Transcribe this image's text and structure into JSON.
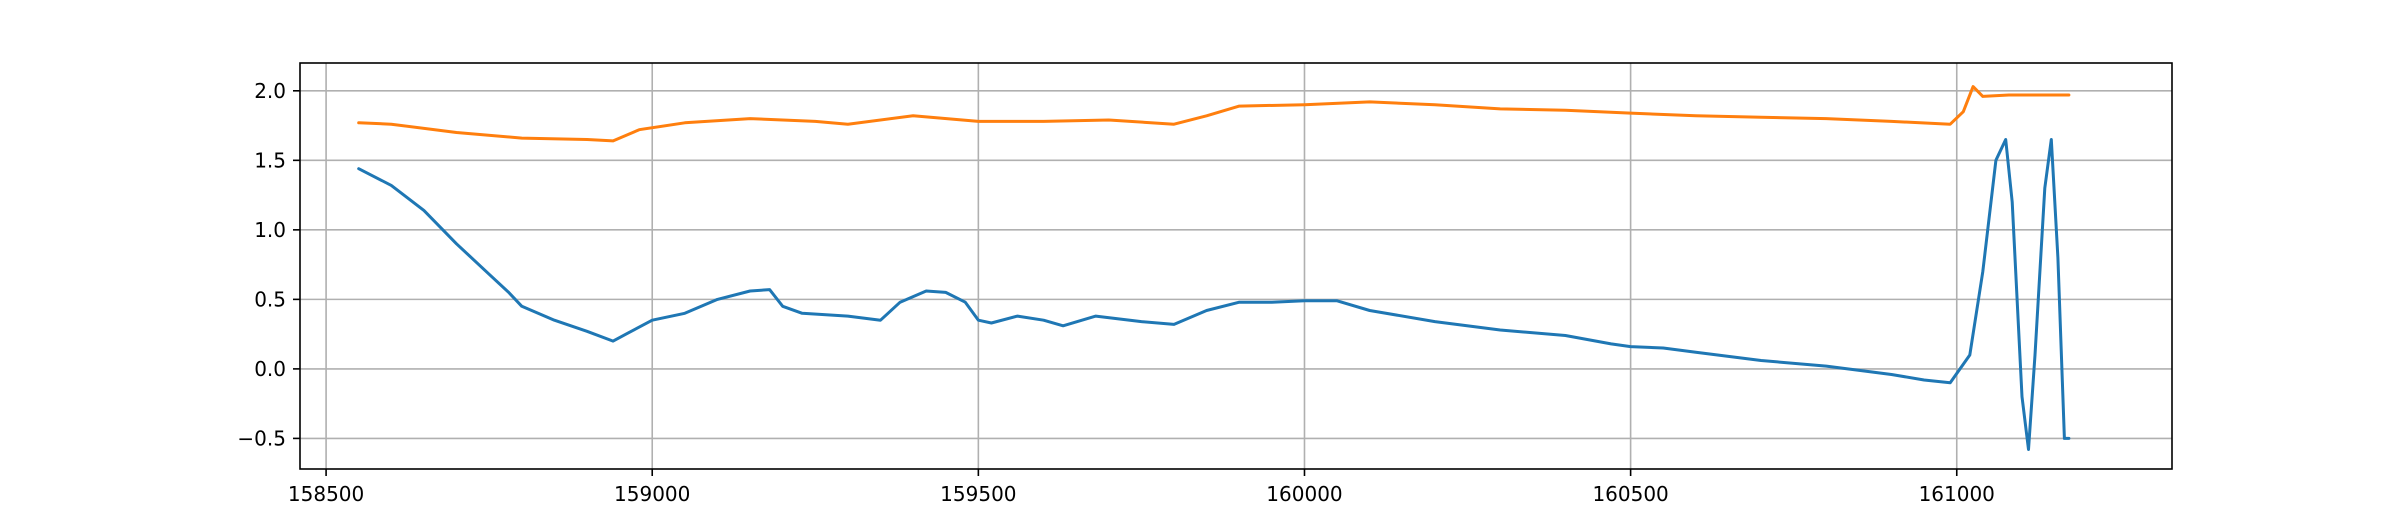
{
  "chart_data": {
    "type": "line",
    "title": "",
    "xlabel": "",
    "ylabel": "",
    "grid": true,
    "xlim": [
      158460,
      161330
    ],
    "ylim": [
      -0.72,
      2.2
    ],
    "xticks": [
      158500,
      159000,
      159500,
      160000,
      160500,
      161000
    ],
    "xtick_labels": [
      "158500",
      "159000",
      "159500",
      "160000",
      "160500",
      "161000"
    ],
    "yticks": [
      -0.5,
      0.0,
      0.5,
      1.0,
      1.5,
      2.0
    ],
    "ytick_labels": [
      "−0.5",
      "0.0",
      "0.5",
      "1.0",
      "1.5",
      "2.0"
    ],
    "series": [
      {
        "color": "#1f77b4",
        "x": [
          158550,
          158600,
          158650,
          158700,
          158750,
          158780,
          158800,
          158850,
          158900,
          158940,
          158960,
          159000,
          159050,
          159100,
          159150,
          159180,
          159200,
          159230,
          159300,
          159350,
          159380,
          159420,
          159450,
          159480,
          159500,
          159520,
          159560,
          159600,
          159630,
          159680,
          159750,
          159800,
          159850,
          159900,
          159950,
          160000,
          160050,
          160100,
          160200,
          160300,
          160400,
          160470,
          160500,
          160550,
          160600,
          160700,
          160800,
          160900,
          160950,
          160990,
          161020,
          161040,
          161060,
          161075,
          161085,
          161100,
          161110,
          161120,
          161135,
          161145,
          161155,
          161165,
          161172
        ],
        "y": [
          1.44,
          1.32,
          1.14,
          0.9,
          0.68,
          0.55,
          0.45,
          0.35,
          0.27,
          0.2,
          0.25,
          0.35,
          0.4,
          0.5,
          0.56,
          0.57,
          0.45,
          0.4,
          0.38,
          0.35,
          0.48,
          0.56,
          0.55,
          0.48,
          0.35,
          0.33,
          0.38,
          0.35,
          0.31,
          0.38,
          0.34,
          0.32,
          0.42,
          0.48,
          0.48,
          0.49,
          0.49,
          0.42,
          0.34,
          0.28,
          0.24,
          0.18,
          0.16,
          0.15,
          0.12,
          0.06,
          0.02,
          -0.04,
          -0.08,
          -0.1,
          0.1,
          0.7,
          1.5,
          1.65,
          1.2,
          -0.2,
          -0.58,
          0.1,
          1.3,
          1.65,
          0.8,
          -0.5,
          -0.5
        ]
      },
      {
        "color": "#ff7f0e",
        "x": [
          158550,
          158600,
          158700,
          158800,
          158900,
          158940,
          158980,
          159050,
          159150,
          159250,
          159300,
          159400,
          159500,
          159600,
          159700,
          159800,
          159850,
          159900,
          160000,
          160100,
          160200,
          160300,
          160400,
          160500,
          160600,
          160700,
          160800,
          160900,
          160990,
          161010,
          161025,
          161040,
          161080,
          161120,
          161172
        ],
        "y": [
          1.77,
          1.76,
          1.7,
          1.66,
          1.65,
          1.64,
          1.72,
          1.77,
          1.8,
          1.78,
          1.76,
          1.82,
          1.78,
          1.78,
          1.79,
          1.76,
          1.82,
          1.89,
          1.9,
          1.92,
          1.9,
          1.87,
          1.86,
          1.84,
          1.82,
          1.81,
          1.8,
          1.78,
          1.76,
          1.85,
          2.03,
          1.96,
          1.97,
          1.97,
          1.97
        ]
      }
    ]
  }
}
